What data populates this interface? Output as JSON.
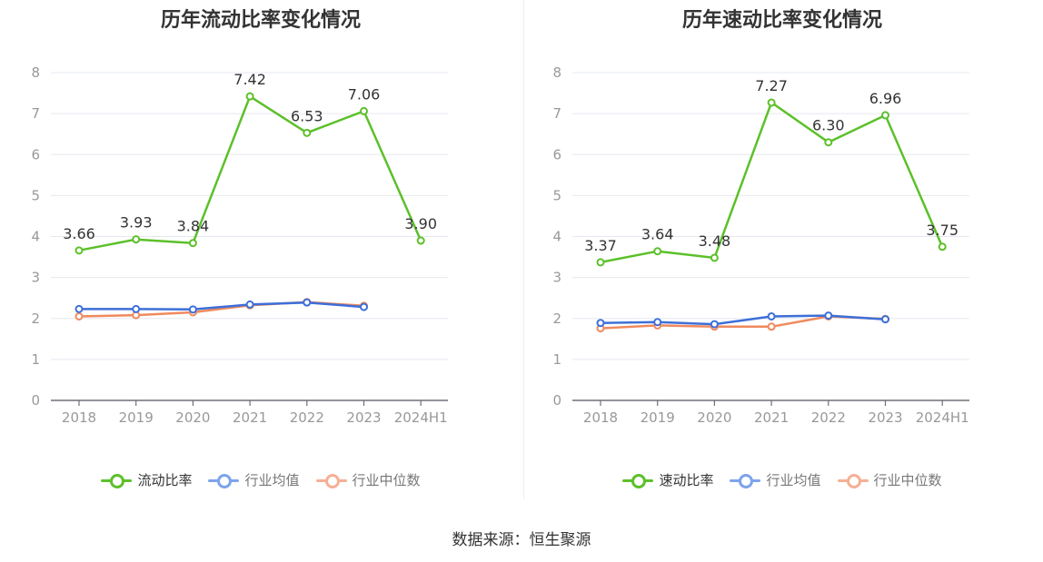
{
  "source": "数据来源：恒生聚源",
  "chart_data": [
    {
      "type": "line",
      "title": "历年流动比率变化情况",
      "categories": [
        "2018",
        "2019",
        "2020",
        "2021",
        "2022",
        "2023",
        "2024H1"
      ],
      "ylim": [
        0,
        8
      ],
      "yticks": [
        0,
        1,
        2,
        3,
        4,
        5,
        6,
        7,
        8
      ],
      "grid": true,
      "legend_position": "bottom",
      "series": [
        {
          "name": "流动比率",
          "color": "#5cc02a",
          "labeled": true,
          "values": [
            3.66,
            3.93,
            3.84,
            7.42,
            6.53,
            7.06,
            3.9
          ],
          "labels": [
            "3.66",
            "3.93",
            "3.84",
            "7.42",
            "6.53",
            "7.06",
            "3.90"
          ]
        },
        {
          "name": "行业均值",
          "color": "#3d6fd8",
          "legend_color": "#7ea3ec",
          "labeled": false,
          "values": [
            2.23,
            2.23,
            2.22,
            2.34,
            2.39,
            2.28,
            null
          ]
        },
        {
          "name": "行业中位数",
          "color": "#f08a5d",
          "legend_color": "#f5b094",
          "labeled": false,
          "values": [
            2.05,
            2.08,
            2.15,
            2.32,
            2.4,
            2.31,
            null
          ]
        }
      ]
    },
    {
      "type": "line",
      "title": "历年速动比率变化情况",
      "categories": [
        "2018",
        "2019",
        "2020",
        "2021",
        "2022",
        "2023",
        "2024H1"
      ],
      "ylim": [
        0,
        8
      ],
      "yticks": [
        0,
        1,
        2,
        3,
        4,
        5,
        6,
        7,
        8
      ],
      "grid": true,
      "legend_position": "bottom",
      "series": [
        {
          "name": "速动比率",
          "color": "#5cc02a",
          "labeled": true,
          "values": [
            3.37,
            3.64,
            3.48,
            7.27,
            6.3,
            6.96,
            3.75
          ],
          "labels": [
            "3.37",
            "3.64",
            "3.48",
            "7.27",
            "6.30",
            "6.96",
            "3.75"
          ]
        },
        {
          "name": "行业均值",
          "color": "#3d6fd8",
          "legend_color": "#7ea3ec",
          "labeled": false,
          "values": [
            1.89,
            1.91,
            1.86,
            2.05,
            2.07,
            1.98,
            null
          ]
        },
        {
          "name": "行业中位数",
          "color": "#f08a5d",
          "legend_color": "#f5b094",
          "labeled": false,
          "values": [
            1.76,
            1.83,
            1.8,
            1.8,
            2.05,
            1.99,
            null
          ]
        }
      ]
    }
  ]
}
